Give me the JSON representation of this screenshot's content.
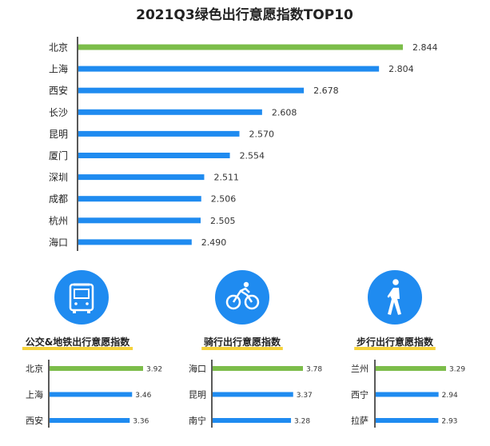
{
  "colors": {
    "top_bar": "#7cbd4a",
    "bar": "#1f8bf0",
    "axis": "#222222",
    "icon_bg": "#1f8bf0",
    "underline": "#f5d23a"
  },
  "chart_data": [
    {
      "type": "bar",
      "orientation": "horizontal",
      "title": "2021Q3绿色出行意愿指数TOP10",
      "categories": [
        "北京",
        "上海",
        "西安",
        "长沙",
        "昆明",
        "厦门",
        "深圳",
        "成都",
        "杭州",
        "海口"
      ],
      "values": [
        2.844,
        2.804,
        2.678,
        2.608,
        2.57,
        2.554,
        2.511,
        2.506,
        2.505,
        2.49
      ],
      "value_labels": [
        "2.844",
        "2.804",
        "2.678",
        "2.608",
        "2.570",
        "2.554",
        "2.511",
        "2.506",
        "2.505",
        "2.490"
      ],
      "bar_colors": [
        "#7cbd4a",
        "#1f8bf0",
        "#1f8bf0",
        "#1f8bf0",
        "#1f8bf0",
        "#1f8bf0",
        "#1f8bf0",
        "#1f8bf0",
        "#1f8bf0",
        "#1f8bf0"
      ],
      "xlim": [
        2.3,
        2.844
      ]
    },
    {
      "type": "bar",
      "orientation": "horizontal",
      "title": "公交&地铁出行意愿指数",
      "icon": "bus-icon",
      "categories": [
        "北京",
        "上海",
        "西安"
      ],
      "values": [
        3.92,
        3.46,
        3.36
      ],
      "value_labels": [
        "3.92",
        "3.46",
        "3.36"
      ],
      "bar_colors": [
        "#7cbd4a",
        "#1f8bf0",
        "#1f8bf0"
      ],
      "xlim": [
        0,
        3.92
      ]
    },
    {
      "type": "bar",
      "orientation": "horizontal",
      "title": "骑行出行意愿指数",
      "icon": "bicycle-icon",
      "categories": [
        "海口",
        "昆明",
        "南宁"
      ],
      "values": [
        3.78,
        3.37,
        3.28
      ],
      "value_labels": [
        "3.78",
        "3.37",
        "3.28"
      ],
      "bar_colors": [
        "#7cbd4a",
        "#1f8bf0",
        "#1f8bf0"
      ],
      "xlim": [
        0,
        3.78
      ]
    },
    {
      "type": "bar",
      "orientation": "horizontal",
      "title": "步行出行意愿指数",
      "icon": "walking-person-icon",
      "categories": [
        "兰州",
        "西宁",
        "拉萨"
      ],
      "values": [
        3.29,
        2.94,
        2.93
      ],
      "value_labels": [
        "3.29",
        "2.94",
        "2.93"
      ],
      "bar_colors": [
        "#7cbd4a",
        "#1f8bf0",
        "#1f8bf0"
      ],
      "xlim": [
        0,
        3.29
      ]
    }
  ]
}
